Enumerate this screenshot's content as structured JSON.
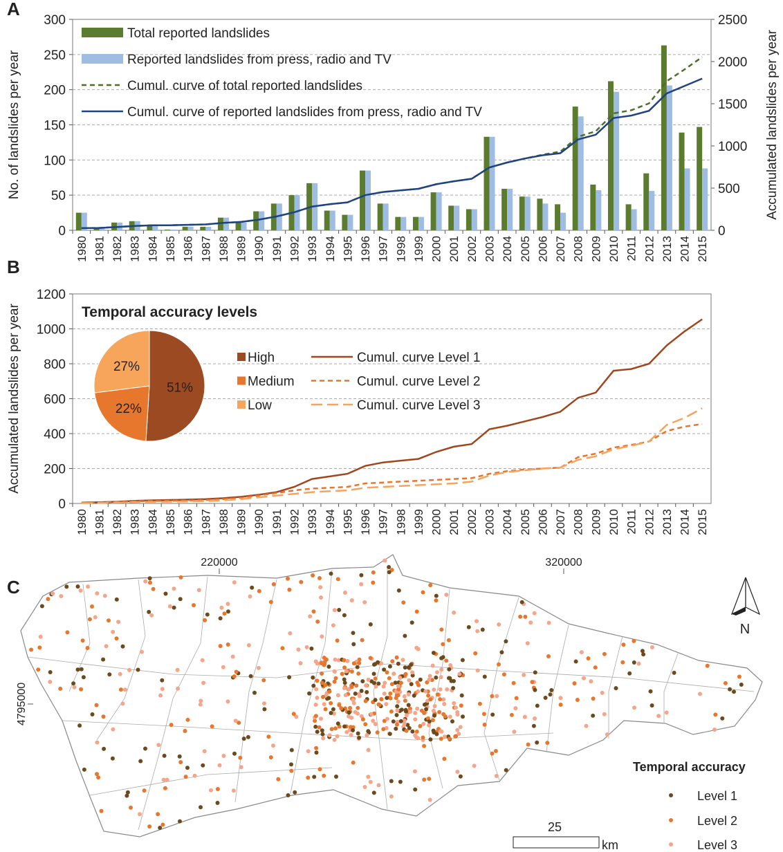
{
  "chart_data": [
    {
      "panel": "A",
      "type": "bar",
      "categories": [
        "1980",
        "1981",
        "1982",
        "1983",
        "1984",
        "1985",
        "1986",
        "1987",
        "1988",
        "1989",
        "1990",
        "1991",
        "1992",
        "1993",
        "1994",
        "1995",
        "1996",
        "1997",
        "1998",
        "1999",
        "2000",
        "2001",
        "2002",
        "2003",
        "2004",
        "2005",
        "2006",
        "2007",
        "2008",
        "2009",
        "2010",
        "2011",
        "2012",
        "2013",
        "2014",
        "2015"
      ],
      "series": [
        {
          "name": "Total reported landslides",
          "color": "#5b7b2f",
          "values": [
            25,
            3,
            11,
            13,
            7,
            1,
            5,
            5,
            18,
            11,
            27,
            38,
            50,
            67,
            28,
            22,
            85,
            38,
            19,
            19,
            54,
            35,
            30,
            133,
            59,
            48,
            45,
            37,
            176,
            65,
            212,
            37,
            81,
            263,
            139,
            147
          ]
        },
        {
          "name": "Reported landslides from press, radio and TV",
          "color": "#9fbde3",
          "values": [
            25,
            3,
            11,
            13,
            7,
            1,
            5,
            5,
            18,
            11,
            27,
            38,
            50,
            67,
            28,
            22,
            85,
            38,
            19,
            19,
            54,
            35,
            30,
            133,
            59,
            48,
            38,
            25,
            162,
            57,
            197,
            30,
            56,
            206,
            88,
            88
          ]
        },
        {
          "name": "Cumul. curve of total reported landslides",
          "type": "line",
          "axis": "y2",
          "dash": "dashed",
          "color": "#4e6e2a",
          "values": [
            25,
            28,
            39,
            52,
            59,
            60,
            65,
            70,
            88,
            99,
            126,
            164,
            214,
            281,
            309,
            331,
            416,
            454,
            473,
            492,
            546,
            581,
            611,
            744,
            803,
            851,
            896,
            933,
            1109,
            1174,
            1386,
            1423,
            1504,
            1767,
            1906,
            2053
          ]
        },
        {
          "name": "Cumul. curve of reported landslides from press, radio and TV",
          "type": "line",
          "axis": "y2",
          "color": "#1f4282",
          "values": [
            25,
            28,
            39,
            52,
            59,
            60,
            65,
            70,
            88,
            99,
            126,
            164,
            214,
            281,
            309,
            331,
            416,
            454,
            473,
            492,
            546,
            581,
            611,
            744,
            803,
            851,
            889,
            914,
            1076,
            1133,
            1330,
            1360,
            1416,
            1622,
            1710,
            1798
          ]
        }
      ],
      "ylim": [
        0,
        300
      ],
      "yticks": [
        0,
        50,
        100,
        150,
        200,
        250,
        300
      ],
      "y2lim": [
        0,
        2500
      ],
      "y2ticks": [
        0,
        500,
        1000,
        1500,
        2000,
        2500
      ],
      "y_label": "No. of landslides per year",
      "y2_label": "Accumulated landslides per year",
      "grid": true
    },
    {
      "panel": "B",
      "type": "line",
      "categories": [
        "1980",
        "1981",
        "1982",
        "1983",
        "1984",
        "1985",
        "1986",
        "1987",
        "1988",
        "1989",
        "1990",
        "1991",
        "1992",
        "1993",
        "1994",
        "1995",
        "1996",
        "1997",
        "1998",
        "1999",
        "2000",
        "2001",
        "2002",
        "2003",
        "2004",
        "2005",
        "2006",
        "2007",
        "2008",
        "2009",
        "2010",
        "2011",
        "2012",
        "2013",
        "2014",
        "2015"
      ],
      "series": [
        {
          "name": "Cumul. curve Level 1",
          "color": "#a0461c",
          "values": [
            5,
            7,
            10,
            15,
            18,
            20,
            22,
            25,
            30,
            38,
            50,
            65,
            95,
            140,
            155,
            170,
            215,
            235,
            245,
            255,
            295,
            325,
            340,
            425,
            445,
            470,
            495,
            525,
            605,
            635,
            760,
            770,
            800,
            905,
            985,
            1055
          ]
        },
        {
          "name": "Cumul. curve Level 2",
          "color": "#e8752a",
          "dash": "dashed",
          "values": [
            3,
            5,
            8,
            12,
            14,
            15,
            17,
            19,
            25,
            32,
            45,
            60,
            75,
            85,
            90,
            95,
            115,
            120,
            125,
            130,
            135,
            140,
            145,
            170,
            185,
            195,
            200,
            205,
            265,
            285,
            320,
            335,
            355,
            415,
            440,
            455
          ]
        },
        {
          "name": "Cumul. curve Level 3",
          "color": "#f5a35e",
          "dash": "long-dashed",
          "values": [
            2,
            3,
            5,
            8,
            9,
            10,
            11,
            13,
            18,
            25,
            35,
            45,
            55,
            65,
            70,
            75,
            90,
            95,
            100,
            105,
            110,
            115,
            125,
            160,
            180,
            190,
            200,
            205,
            250,
            270,
            310,
            330,
            355,
            450,
            490,
            545
          ]
        }
      ],
      "ylim": [
        0,
        1200
      ],
      "yticks": [
        0,
        200,
        400,
        600,
        800,
        1000,
        1200
      ],
      "y_label": "Accumulated landslides per year",
      "grid": true
    },
    {
      "type": "pie",
      "title": "Temporal accuracy levels",
      "categories": [
        "High",
        "Medium",
        "Low"
      ],
      "values": [
        51,
        22,
        27
      ],
      "value_labels": [
        "51%",
        "22%",
        "27%"
      ],
      "colors": [
        "#9c4a22",
        "#e8772e",
        "#f6a55b"
      ]
    }
  ],
  "map": {
    "panel": "C",
    "x_ticks": [
      "220000",
      "320000"
    ],
    "y_ticks": [
      "4795000"
    ],
    "scale_label": "25",
    "scale_unit": "km",
    "north": "N",
    "legend_title": "Temporal accuracy",
    "legend": [
      "Level 1",
      "Level 2",
      "Level 3"
    ]
  }
}
